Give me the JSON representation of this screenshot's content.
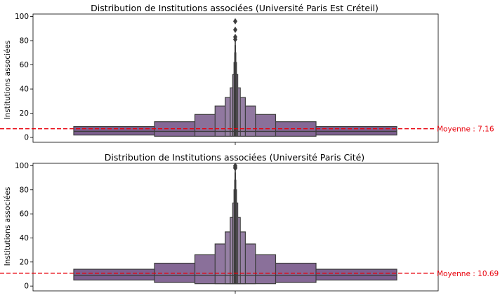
{
  "chart_data": [
    {
      "type": "boxen",
      "title": "Distribution de Institutions associées (Université Paris Est Créteil)",
      "ylabel": "Institutions associées",
      "xlabel": "",
      "ylim": [
        -4,
        102
      ],
      "yticks": [
        0,
        20,
        40,
        60,
        80,
        100
      ],
      "grid": false,
      "color": "#7d5f8f",
      "median": 5,
      "boxes": [
        {
          "low": 2,
          "high": 9,
          "level": 1
        },
        {
          "low": 1,
          "high": 13,
          "level": 2
        },
        {
          "low": 1,
          "high": 19,
          "level": 3
        },
        {
          "low": 1,
          "high": 26,
          "level": 4
        },
        {
          "low": 1,
          "high": 33,
          "level": 5
        },
        {
          "low": 1,
          "high": 41,
          "level": 6
        },
        {
          "low": 1,
          "high": 52,
          "level": 7
        },
        {
          "low": 1,
          "high": 62,
          "level": 8
        },
        {
          "low": 1,
          "high": 70,
          "level": 9
        },
        {
          "low": 1,
          "high": 76,
          "level": 10
        },
        {
          "low": 1,
          "high": 80,
          "level": 11
        }
      ],
      "outliers": [
        81,
        83,
        89,
        96
      ],
      "mean": {
        "value": 7.16,
        "label": "Moyenne : 7.16",
        "color": "#e8000b"
      }
    },
    {
      "type": "boxen",
      "title": "Distribution de Institutions associées (Université Paris Cité)",
      "ylabel": "Institutions associées",
      "xlabel": "",
      "ylim": [
        -4,
        102
      ],
      "yticks": [
        0,
        20,
        40,
        60,
        80,
        100
      ],
      "grid": false,
      "color": "#7d5f8f",
      "median": 9,
      "boxes": [
        {
          "low": 5,
          "high": 14,
          "level": 1
        },
        {
          "low": 3,
          "high": 19,
          "level": 2
        },
        {
          "low": 2,
          "high": 26,
          "level": 3
        },
        {
          "low": 2,
          "high": 35,
          "level": 4
        },
        {
          "low": 2,
          "high": 45,
          "level": 5
        },
        {
          "low": 2,
          "high": 57,
          "level": 6
        },
        {
          "low": 2,
          "high": 69,
          "level": 7
        },
        {
          "low": 2,
          "high": 80,
          "level": 8
        },
        {
          "low": 2,
          "high": 88,
          "level": 9
        },
        {
          "low": 2,
          "high": 94,
          "level": 10
        },
        {
          "low": 2,
          "high": 97,
          "level": 11
        }
      ],
      "outliers": [
        98,
        99,
        100
      ],
      "mean": {
        "value": 10.69,
        "label": "Moyenne : 10.69",
        "color": "#e8000b"
      }
    }
  ]
}
